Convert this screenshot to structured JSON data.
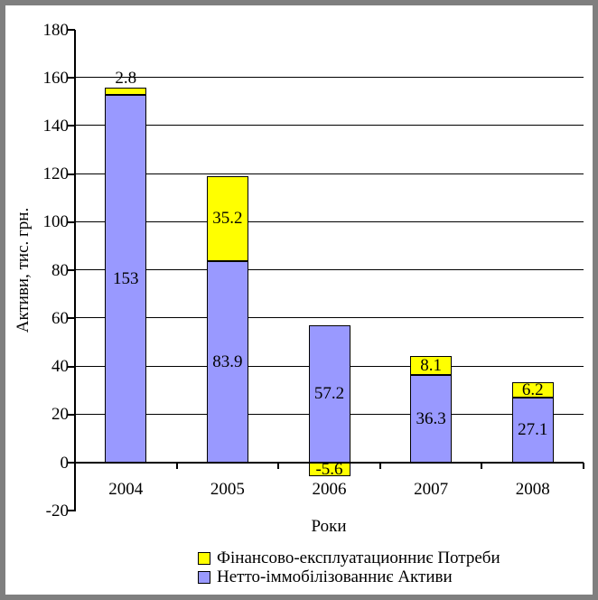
{
  "window": {
    "background_color": "#FFFFFF",
    "frame_color": "#7F7F7F"
  },
  "chart_data": {
    "type": "bar",
    "stacked": true,
    "title": "",
    "xlabel": "Роки",
    "ylabel": "Активи, тис. грн.",
    "ylim": [
      -20,
      180
    ],
    "ytick_step": 20,
    "yticks": [
      180,
      160,
      140,
      120,
      100,
      80,
      60,
      40,
      20,
      0,
      -20
    ],
    "grid": "horizontal",
    "legend_position": "bottom",
    "categories": [
      "2004",
      "2005",
      "2006",
      "2007",
      "2008"
    ],
    "series": [
      {
        "name": "Нетто-іммобілізованниє Активи",
        "color": "#9999FF",
        "values": [
          153,
          83.9,
          57.2,
          36.3,
          27.1
        ],
        "labels": [
          "153",
          "83.9",
          "57.2",
          "36.3",
          "27.1"
        ]
      },
      {
        "name": "Фінансово-експлуатационниє Потреби",
        "color": "#FFFF00",
        "values": [
          2.8,
          35.2,
          -5.6,
          8.1,
          6.2
        ],
        "labels": [
          "2.8",
          "35.2",
          "-5.6",
          "8.1",
          "6.2"
        ]
      }
    ],
    "legend": [
      {
        "label": "Фінансово-експлуатационниє Потреби",
        "color": "#FFFF00"
      },
      {
        "label": "Нетто-іммобілізованниє Активи",
        "color": "#9999FF"
      }
    ]
  }
}
